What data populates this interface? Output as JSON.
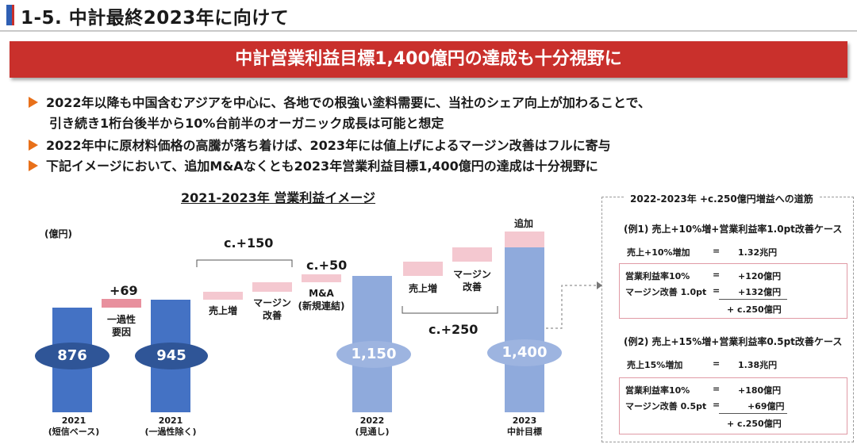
{
  "header": {
    "title": "1-5. 中計最終2023年に向けて"
  },
  "banner": {
    "text": "中計営業利益目標1,400億円の達成も十分視野に"
  },
  "bullets": [
    "2022年以降も中国含むアジアを中心に、各地での根強い塗料需要に、当社のシェア向上が加わることで、",
    "引き続き1桁台後半から10%台前半のオーガニック成長は可能と想定",
    "2022年中に原材料価格の高騰が落ち着けば、2023年には値上げによるマージン改善はフルに寄与",
    "下記イメージにおいて、追加M&Aなくとも2023年営業利益目標1,400億円の達成は十分視野に"
  ],
  "chart": {
    "title": "2021-2023年 営業利益イメージ",
    "unit": "(億円)",
    "bar_values": [
      "876",
      "945",
      "1,150",
      "1,400"
    ],
    "plus69": "+69",
    "one_time": "一過性\n要因",
    "c150": "c.+150",
    "c50": "c.+50",
    "c250": "c.+250",
    "sales_up": "売上増",
    "margin_up": "マージン\n改善",
    "ma": "M&A\n(新規連結)",
    "add_ma": "追加\nM&A?",
    "x_labels": [
      "2021\n(短信ベース)",
      "2021\n(一過性除く)",
      "2022\n(見通し)",
      "2023\n中計目標"
    ]
  },
  "chart_data": {
    "type": "bar",
    "categories": [
      "2021 (短信ベース)",
      "一過性要因",
      "2021 (一過性除く)",
      "売上増",
      "マージン改善",
      "M&A (新規連結)",
      "2022 (見通し)",
      "売上増",
      "マージン改善",
      "追加M&A?",
      "2023 中計目標"
    ],
    "values": [
      876,
      69,
      945,
      null,
      null,
      50,
      1150,
      null,
      null,
      null,
      1400
    ],
    "title": "2021-2023年 営業利益イメージ",
    "ylabel": "(億円)"
  },
  "panel": {
    "title": "2022-2023年 +c.250億円増益への道筋",
    "case1": {
      "title": "(例1) 売上+10%増+営業利益率1.0pt改善ケース",
      "rows": [
        [
          "売上+10%増加",
          "=",
          "1.32兆円"
        ],
        [
          "営業利益率10%",
          "=",
          "+120億円"
        ],
        [
          "マージン改善 1.0pt",
          "=",
          "+132億円"
        ]
      ],
      "total": "+ c.250億円"
    },
    "case2": {
      "title": "(例2) 売上+15%増+営業利益率0.5pt改善ケース",
      "rows": [
        [
          "売上15%増加",
          "=",
          "1.38兆円"
        ],
        [
          "営業利益率10%",
          "=",
          "+180億円"
        ],
        [
          "マージン改善 0.5pt",
          "=",
          "+69億円"
        ]
      ],
      "total": "+ c.250億円"
    }
  }
}
